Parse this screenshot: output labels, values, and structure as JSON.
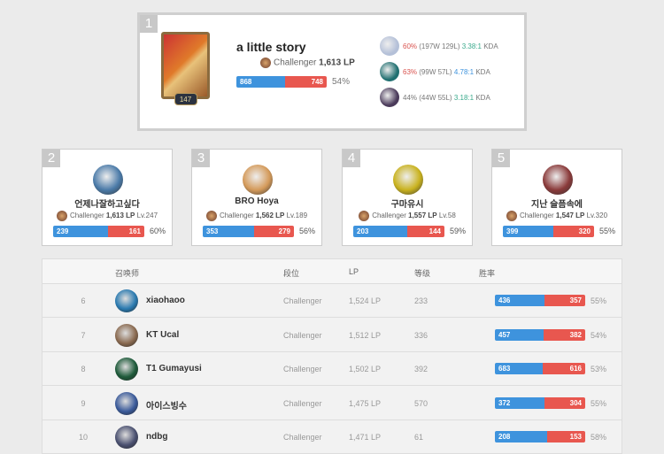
{
  "colors": {
    "win": "#3e93dd",
    "loss": "#e8574f"
  },
  "top": {
    "rank": "1",
    "name": "a little story",
    "tier": "Challenger",
    "lp": "1,613 LP",
    "level": "147",
    "wins": "868",
    "losses": "748",
    "winrate": "54%",
    "champions": [
      {
        "pct": "60%",
        "record": "(197W 129L)",
        "kda": "3.38:1",
        "kda_label": "KDA",
        "color": "#b4c0d8",
        "pct_color": "#d9534f",
        "kda_color": "#3aaa8c"
      },
      {
        "pct": "63%",
        "record": "(99W 57L)",
        "kda": "4.78:1",
        "kda_label": "KDA",
        "color": "#1f6f70",
        "pct_color": "#d9534f",
        "kda_color": "#3e93dd"
      },
      {
        "pct": "44%",
        "record": "(44W 55L)",
        "kda": "3.18:1",
        "kda_label": "KDA",
        "color": "#4a3a5a",
        "pct_color": "#777",
        "kda_color": "#3aaa8c"
      }
    ]
  },
  "cards": [
    {
      "rank": "2",
      "name": "언제나잘하고싶다",
      "tier": "Challenger",
      "lp": "1,613 LP",
      "level": "Lv.247",
      "wins": "239",
      "losses": "161",
      "winrate": "60%",
      "avatar": "#4a7aa8"
    },
    {
      "rank": "3",
      "name": "BRO Hoya",
      "tier": "Challenger",
      "lp": "1,562 LP",
      "level": "Lv.189",
      "wins": "353",
      "losses": "279",
      "winrate": "56%",
      "avatar": "#d49a5a"
    },
    {
      "rank": "4",
      "name": "구마유시",
      "tier": "Challenger",
      "lp": "1,557 LP",
      "level": "Lv.58",
      "wins": "203",
      "losses": "144",
      "winrate": "59%",
      "avatar": "#c9b21e"
    },
    {
      "rank": "5",
      "name": "지난 슬픔속에",
      "tier": "Challenger",
      "lp": "1,547 LP",
      "level": "Lv.320",
      "wins": "399",
      "losses": "320",
      "winrate": "55%",
      "avatar": "#8a3a3a"
    }
  ],
  "table": {
    "headers": {
      "summoner": "召唤师",
      "tier": "段位",
      "lp": "LP",
      "level": "等级",
      "winrate": "胜率"
    },
    "rows": [
      {
        "rank": "6",
        "name": "xiaohaoo",
        "tier": "Challenger",
        "lp": "1,524 LP",
        "level": "233",
        "wins": "436",
        "losses": "357",
        "winrate": "55%",
        "avatar": "#2a7ab0"
      },
      {
        "rank": "7",
        "name": "KT Ucal",
        "tier": "Challenger",
        "lp": "1,512 LP",
        "level": "336",
        "wins": "457",
        "losses": "382",
        "winrate": "54%",
        "avatar": "#8a6a50"
      },
      {
        "rank": "8",
        "name": "T1 Gumayusi",
        "tier": "Challenger",
        "lp": "1,502 LP",
        "level": "392",
        "wins": "683",
        "losses": "616",
        "winrate": "53%",
        "avatar": "#1e5a3a"
      },
      {
        "rank": "9",
        "name": "아이스빙수",
        "tier": "Challenger",
        "lp": "1,475 LP",
        "level": "570",
        "wins": "372",
        "losses": "304",
        "winrate": "55%",
        "avatar": "#3a5a9a"
      },
      {
        "rank": "10",
        "name": "ndbg",
        "tier": "Challenger",
        "lp": "1,471 LP",
        "level": "61",
        "wins": "208",
        "losses": "153",
        "winrate": "58%",
        "avatar": "#4a5070"
      }
    ]
  }
}
